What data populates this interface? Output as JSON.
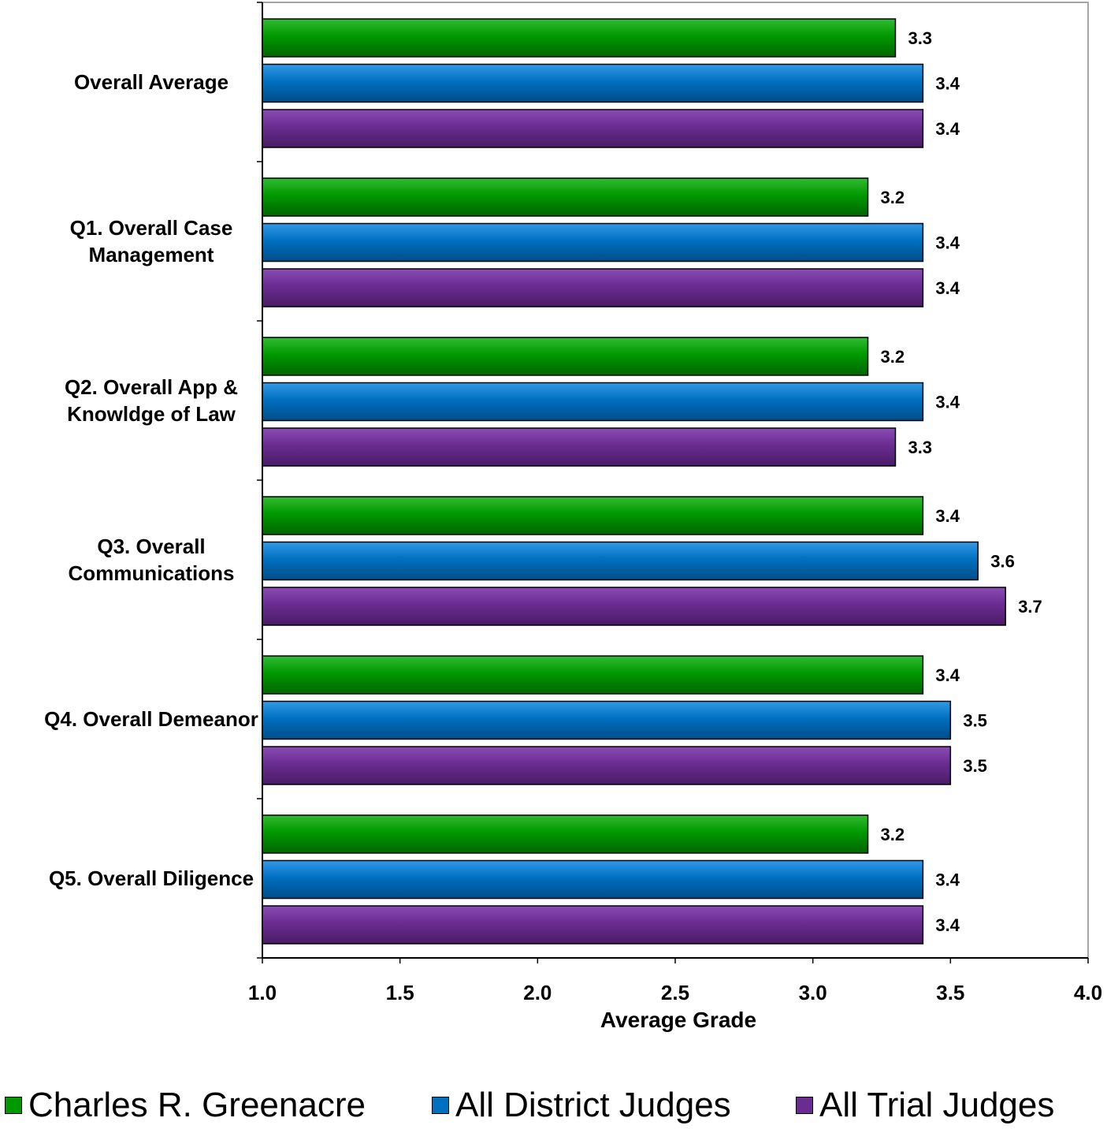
{
  "chart_data": {
    "type": "bar",
    "orientation": "horizontal",
    "categories": [
      [
        "Overall Average"
      ],
      [
        "Q1. Overall Case",
        "Management"
      ],
      [
        "Q2. Overall App &",
        "Knowldge of Law"
      ],
      [
        "Q3. Overall",
        "Communications"
      ],
      [
        "Q4. Overall Demeanor"
      ],
      [
        "Q5. Overall Diligence"
      ]
    ],
    "series": [
      {
        "name": "Charles R. Greenacre",
        "color": "#009900",
        "values": [
          3.3,
          3.2,
          3.2,
          3.4,
          3.4,
          3.2
        ],
        "labels": [
          "3.3",
          "3.2",
          "3.2",
          "3.4",
          "3.4",
          "3.2"
        ]
      },
      {
        "name": "All District Judges",
        "color": "#0070c0",
        "values": [
          3.4,
          3.4,
          3.4,
          3.6,
          3.5,
          3.4
        ],
        "labels": [
          "3.4",
          "3.4",
          "3.4",
          "3.6",
          "3.5",
          "3.4"
        ]
      },
      {
        "name": "All Trial Judges",
        "color": "#6a2c91",
        "values": [
          3.4,
          3.4,
          3.3,
          3.7,
          3.5,
          3.4
        ],
        "labels": [
          "3.4",
          "3.4",
          "3.3",
          "3.7",
          "3.5",
          "3.4"
        ]
      }
    ],
    "xlabel": "Average Grade",
    "xlim": [
      1.0,
      4.0
    ],
    "xticks": [
      "1.0",
      "1.5",
      "2.0",
      "2.5",
      "3.0",
      "3.5",
      "4.0"
    ],
    "grid": false,
    "legend_position": "bottom"
  }
}
